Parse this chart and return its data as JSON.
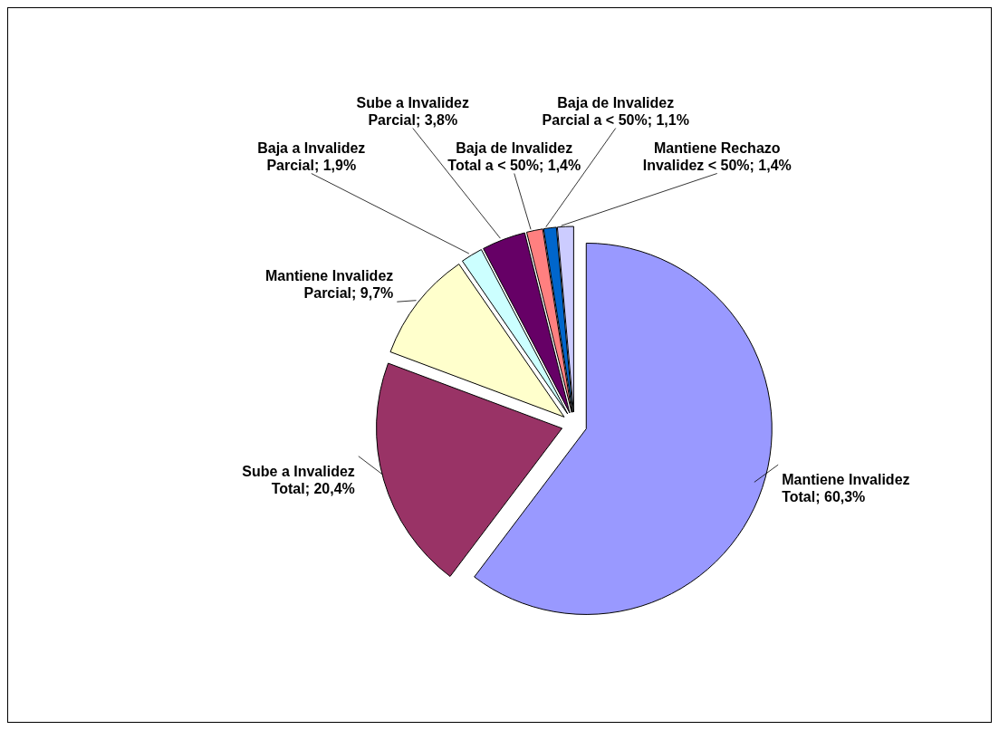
{
  "chart_data": {
    "type": "pie",
    "categories": [
      "Mantiene Invalidez Total",
      "Sube a Invalidez Total",
      "Mantiene Invalidez Parcial",
      "Baja a Invalidez Parcial",
      "Sube a Invalidez Parcial",
      "Baja de Invalidez Total a < 50%",
      "Baja de Invalidez Parcial a < 50%",
      "Mantiene Rechazo Invalidez < 50%"
    ],
    "values": [
      60.3,
      20.4,
      9.7,
      1.9,
      3.8,
      1.4,
      1.1,
      1.4
    ],
    "value_labels": [
      "60,3%",
      "20,4%",
      "9,7%",
      "1,9%",
      "3,8%",
      "1,4%",
      "1,1%",
      "1,4%"
    ],
    "colors": [
      "#9999ff",
      "#993366",
      "#ffffcc",
      "#ccffff",
      "#660066",
      "#ff8080",
      "#0066cc",
      "#ccccff"
    ],
    "legend": false
  }
}
